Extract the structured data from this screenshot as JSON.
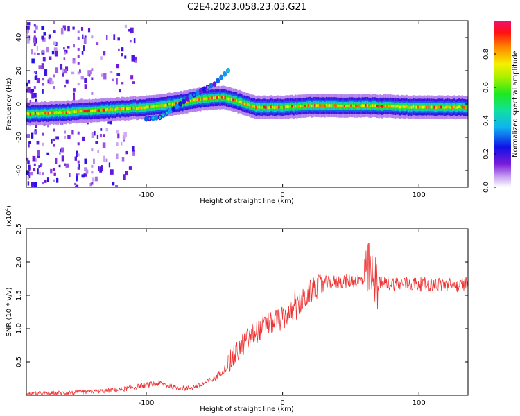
{
  "title": "C2E4.2023.058.23.03.G21",
  "chart_data": [
    {
      "type": "heatmap",
      "name": "spectrogram",
      "xlabel": "Height of straight line (km)",
      "ylabel": "Frequency (Hz)",
      "xlim": [
        -188,
        136
      ],
      "ylim": [
        -50,
        50
      ],
      "xticks": [
        -100,
        0,
        100
      ],
      "yticks": [
        -40,
        -20,
        0,
        20,
        40
      ],
      "colorbar": {
        "label": "Normalized spectral amplitude",
        "range": [
          0.0,
          1.0
        ],
        "ticks": [
          0.0,
          0.2,
          0.4,
          0.6,
          0.8
        ],
        "tick_labels": [
          "0.0",
          "0.2",
          "0.4",
          "0.6",
          "0.8"
        ]
      },
      "main_track": {
        "x": [
          -188,
          -160,
          -140,
          -120,
          -100,
          -80,
          -60,
          -45,
          -35,
          -20,
          -5,
          0,
          20,
          60,
          100,
          136
        ],
        "freq": [
          -6,
          -5,
          -4,
          -3,
          -2,
          0,
          3,
          4,
          2,
          -2,
          -2,
          -2,
          -1,
          -1,
          -2,
          -2
        ]
      },
      "secondary_track": {
        "x": [
          -100,
          -90,
          -80,
          -70,
          -60,
          -50,
          -40
        ],
        "freq": [
          -9,
          -8,
          -3,
          3,
          8,
          12,
          20
        ]
      }
    },
    {
      "type": "line",
      "name": "snr",
      "xlabel": "Height of straight line (km)",
      "ylabel": "SNR (10 * v/v)",
      "scale_label": "(x10",
      "scale_exponent": "4",
      "multiplier": 10000,
      "xlim": [
        -188,
        136
      ],
      "ylim": [
        0,
        2.5
      ],
      "xticks": [
        -100,
        0,
        100
      ],
      "yticks": [
        0.5,
        1.0,
        1.5,
        2.0,
        2.5
      ],
      "ytick_labels": [
        "0.5",
        "1.0",
        "1.5",
        "2.0",
        "2.5"
      ],
      "color": "#ee3333",
      "trend": {
        "x": [
          -188,
          -150,
          -120,
          -100,
          -90,
          -80,
          -70,
          -60,
          -50,
          -40,
          -30,
          -20,
          -10,
          0,
          10,
          20,
          25,
          30,
          40,
          50,
          60,
          62,
          64,
          66,
          68,
          70,
          80,
          100,
          120,
          130,
          136
        ],
        "y": [
          0.02,
          0.04,
          0.08,
          0.15,
          0.18,
          0.12,
          0.1,
          0.15,
          0.25,
          0.45,
          0.75,
          0.95,
          1.08,
          1.15,
          1.3,
          1.55,
          1.62,
          1.68,
          1.7,
          1.72,
          1.72,
          1.75,
          2.0,
          1.65,
          1.7,
          1.68,
          1.68,
          1.67,
          1.66,
          1.64,
          1.7
        ]
      }
    }
  ]
}
